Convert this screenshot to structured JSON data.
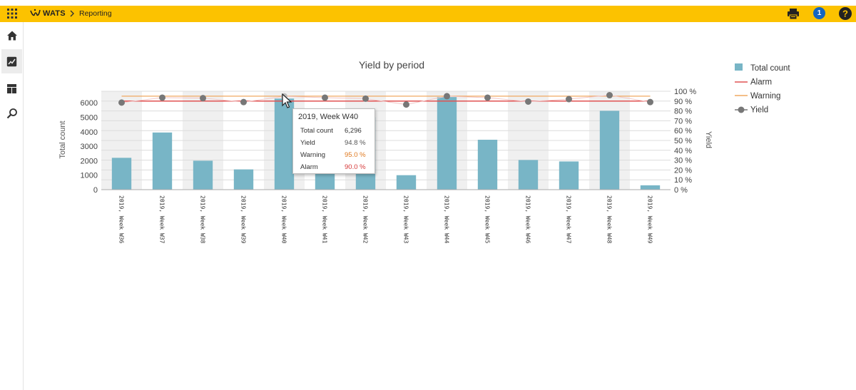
{
  "header": {
    "brand": "WATS",
    "breadcrumb": "Reporting",
    "notification_count": "1",
    "icons": [
      "apps-grid-icon",
      "wats-logo-icon",
      "chevron-right-icon",
      "print-icon",
      "help-icon"
    ],
    "bar_color": "#fcc200"
  },
  "sidebar": {
    "items": [
      {
        "name": "home",
        "icon": "home-icon"
      },
      {
        "name": "reporting",
        "icon": "chart-icon",
        "active": true
      },
      {
        "name": "dashboard",
        "icon": "dashboard-icon"
      },
      {
        "name": "search",
        "icon": "search-icon"
      }
    ]
  },
  "chart_data": {
    "type": "bar",
    "title": "Yield by period",
    "ylabel": "Total count",
    "y2label": "Yield",
    "ylim": [
      0,
      6800
    ],
    "y2lim": [
      0,
      100
    ],
    "yticks": [
      "0",
      "1000",
      "2000",
      "3000",
      "4000",
      "5000",
      "6000"
    ],
    "y2ticks": [
      "0 %",
      "10 %",
      "20 %",
      "30 %",
      "40 %",
      "50 %",
      "60 %",
      "70 %",
      "80 %",
      "90 %",
      "100 %"
    ],
    "categories": [
      "2019, Week W36",
      "2019, Week W37",
      "2019, Week W38",
      "2019, Week W39",
      "2019, Week W40",
      "2019, Week W41",
      "2019, Week W42",
      "2019, Week W43",
      "2019, Week W44",
      "2019, Week W45",
      "2019, Week W46",
      "2019, Week W47",
      "2019, Week W48",
      "2019, Week W49"
    ],
    "series": [
      {
        "name": "Total count",
        "type": "bar",
        "color": "#78b5c6",
        "values": [
          2200,
          3950,
          2000,
          1400,
          6296,
          4800,
          5000,
          1000,
          6400,
          3450,
          2050,
          1950,
          5450,
          300
        ]
      },
      {
        "name": "Alarm",
        "type": "line",
        "color": "#e05252",
        "values": [
          90,
          90,
          90,
          90,
          90,
          90,
          90,
          90,
          90,
          90,
          90,
          90,
          90,
          90
        ]
      },
      {
        "name": "Warning",
        "type": "line",
        "color": "#f0a860",
        "values": [
          95,
          95,
          95,
          95,
          95,
          95,
          95,
          95,
          95,
          95,
          95,
          95,
          95,
          95
        ]
      },
      {
        "name": "Yield",
        "type": "line",
        "color": "#777777",
        "values": [
          88.5,
          93.5,
          93,
          89,
          94.8,
          93.5,
          92.5,
          86.5,
          95,
          93.5,
          89.5,
          92,
          96,
          89
        ]
      }
    ],
    "legend": "right",
    "grid": true,
    "tooltip": {
      "title": "2019, Week W40",
      "rows": [
        {
          "label": "Total count",
          "value": "6,296",
          "color": "#333333"
        },
        {
          "label": "Yield",
          "value": "94.8 %",
          "color": "#555555"
        },
        {
          "label": "Warning",
          "value": "95.0 %",
          "color": "#e07a20"
        },
        {
          "label": "Alarm",
          "value": "90.0 %",
          "color": "#d63a3a"
        }
      ]
    }
  }
}
